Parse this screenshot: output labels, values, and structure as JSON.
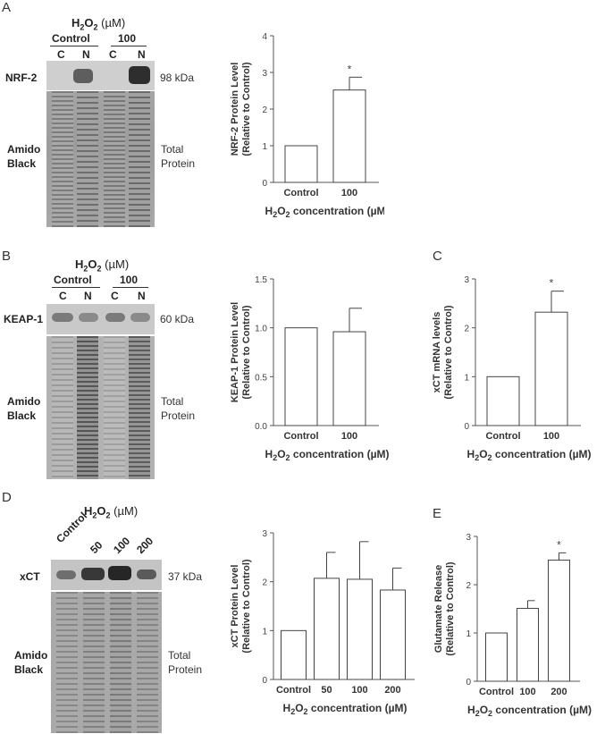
{
  "panels": {
    "A": {
      "letter": "A",
      "conc_prefix": "H",
      "conc_sub": "2",
      "conc_mid": "O",
      "conc_sub2": "2",
      "conc_unit": "(µM)",
      "group1": "Control",
      "group2": "100",
      "lanes": [
        "C",
        "N",
        "C",
        "N"
      ],
      "protein": "NRF-2",
      "kda": "98 kDa",
      "stain1": "Amido",
      "stain2": "Black",
      "total1": "Total",
      "total2": "Protein"
    },
    "B": {
      "letter": "B",
      "conc_unit": "(µM)",
      "group1": "Control",
      "group2": "100",
      "lanes": [
        "C",
        "N",
        "C",
        "N"
      ],
      "protein": "KEAP-1",
      "kda": "60 kDa",
      "stain1": "Amido",
      "stain2": "Black",
      "total1": "Total",
      "total2": "Protein"
    },
    "C": {
      "letter": "C"
    },
    "D": {
      "letter": "D",
      "conc_unit": "(µM)",
      "lanes": [
        "Control",
        "50",
        "100",
        "200"
      ],
      "protein": "xCT",
      "kda": "37 kDa",
      "stain1": "Amido",
      "stain2": "Black",
      "total1": "Total",
      "total2": "Protein"
    },
    "E": {
      "letter": "E"
    }
  },
  "chart_data": [
    {
      "id": "A",
      "type": "bar",
      "categories": [
        "Control",
        "100"
      ],
      "values": [
        1,
        2.52
      ],
      "errors": [
        0,
        0.35
      ],
      "significant": [
        false,
        true
      ],
      "ylim": [
        0,
        4
      ],
      "yticks": [
        "0",
        "1",
        "2",
        "3",
        "4"
      ],
      "ylabel": "NRF-2 Protein Level",
      "ylabel2": "(Relative to Control)",
      "xlabel": "H2O2 concentration (µM)"
    },
    {
      "id": "B",
      "type": "bar",
      "categories": [
        "Control",
        "100"
      ],
      "values": [
        1.0,
        0.96
      ],
      "errors": [
        0,
        0.24
      ],
      "significant": [
        false,
        false
      ],
      "ylim": [
        0,
        1.5
      ],
      "yticks": [
        "0.0",
        "0.5",
        "1.0",
        "1.5"
      ],
      "ylabel": "KEAP-1 Protein Level",
      "ylabel2": "(Relative to Control)",
      "xlabel": "H2O2 concentration (µM)"
    },
    {
      "id": "C",
      "type": "bar",
      "categories": [
        "Control",
        "100"
      ],
      "values": [
        1,
        2.32
      ],
      "errors": [
        0,
        0.43
      ],
      "significant": [
        false,
        true
      ],
      "ylim": [
        0,
        3
      ],
      "yticks": [
        "0",
        "1",
        "2",
        "3"
      ],
      "ylabel": "xCT mRNA levels",
      "ylabel2": "(Relative to Control)",
      "xlabel": "H2O2 concentration (µM)"
    },
    {
      "id": "D",
      "type": "bar",
      "categories": [
        "Control",
        "50",
        "100",
        "200"
      ],
      "values": [
        1,
        2.07,
        2.05,
        1.83
      ],
      "errors": [
        0,
        0.53,
        0.77,
        0.45
      ],
      "significant": [
        false,
        false,
        false,
        false
      ],
      "ylim": [
        0,
        3
      ],
      "yticks": [
        "0",
        "1",
        "2",
        "3"
      ],
      "ylabel": "xCT Protein Level",
      "ylabel2": "(Relative to Control)",
      "xlabel": "H2O2 concentration (µM)"
    },
    {
      "id": "E",
      "type": "bar",
      "categories": [
        "Control",
        "100",
        "200"
      ],
      "values": [
        1,
        1.51,
        2.51
      ],
      "errors": [
        0,
        0.16,
        0.15
      ],
      "significant": [
        false,
        false,
        true
      ],
      "ylim": [
        0,
        3
      ],
      "yticks": [
        "0",
        "1",
        "2",
        "3"
      ],
      "ylabel": "Glutamate Release",
      "ylabel2": "(Relative to Control)",
      "xlabel": "H2O2 concentration (µM)"
    }
  ],
  "significance_marker": "*"
}
